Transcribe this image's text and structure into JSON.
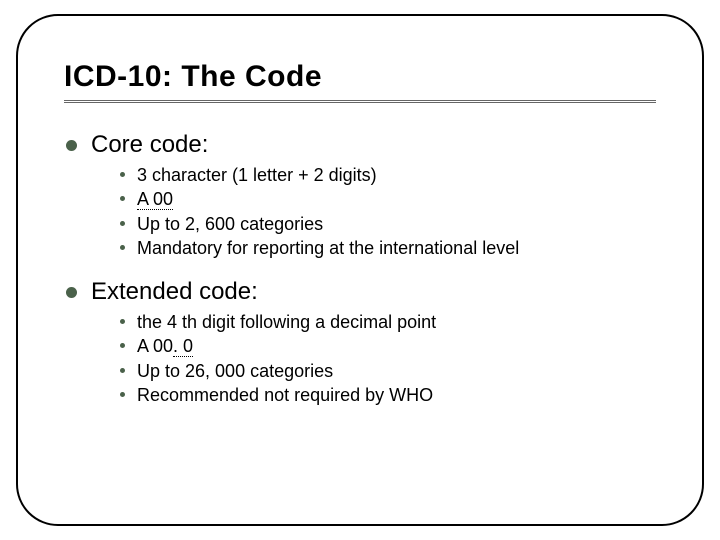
{
  "slide": {
    "title": "ICD-10: The Code",
    "title_fontsize": 30,
    "title_color": "#000000",
    "border_color": "#000000",
    "border_radius": 42,
    "bullet_color": "#4a614a",
    "background_color": "#ffffff",
    "underline_color": "#666666"
  },
  "sections": [
    {
      "label": "Core code:",
      "label_fontsize": 24,
      "items": [
        {
          "text": "3 character (1 letter + 2 digits)",
          "underline": false
        },
        {
          "text": "A 00",
          "underline": true
        },
        {
          "text": "Up to 2, 600 categories",
          "underline": false
        },
        {
          "text": "Mandatory for reporting at the international level",
          "underline": false
        }
      ]
    },
    {
      "label": "Extended code:",
      "label_fontsize": 24,
      "items": [
        {
          "text_prefix": "the 4 th digit following a decimal point",
          "underline": false
        },
        {
          "text_prefix": "A 00",
          "text_underlined": ". 0",
          "underline_partial": true
        },
        {
          "text_prefix": "Up to 26, 000 categories",
          "underline": false
        },
        {
          "text_prefix": "Recommended not required by WHO",
          "underline": false
        }
      ]
    }
  ],
  "typography": {
    "body_fontsize": 18,
    "body_color": "#000000",
    "font_family": "Arial"
  }
}
